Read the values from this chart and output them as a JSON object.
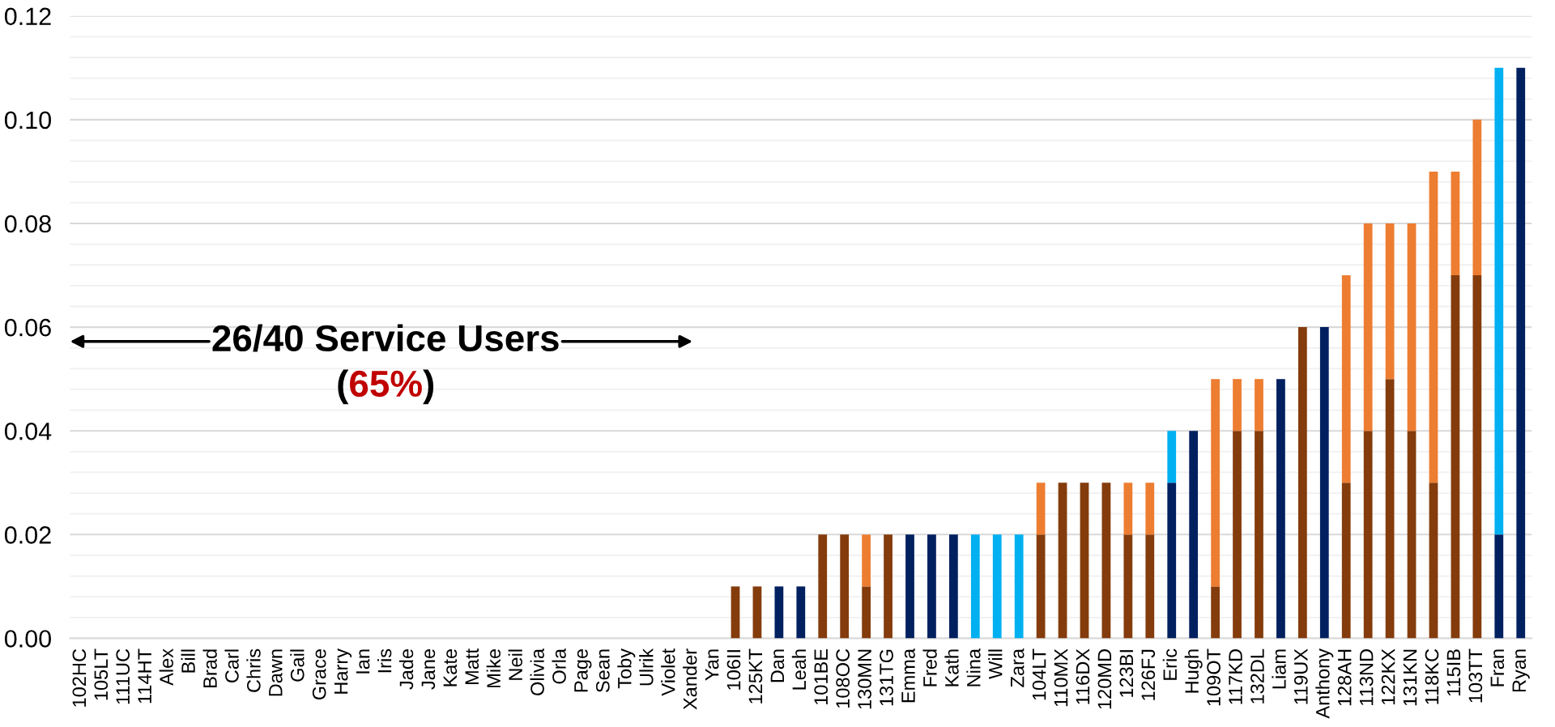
{
  "chart_data": {
    "type": "bar",
    "stacked": true,
    "categories": [
      "102HC",
      "105LT",
      "111UC",
      "114HT",
      "Alex",
      "Bill",
      "Brad",
      "Carl",
      "Chris",
      "Dawn",
      "Gail",
      "Grace",
      "Harry",
      "Ian",
      "Iris",
      "Jade",
      "Jane",
      "Kate",
      "Matt",
      "Mike",
      "Neil",
      "Olivia",
      "Orla",
      "Page",
      "Sean",
      "Toby",
      "Ulrik",
      "Violet",
      "Xander",
      "Yan",
      "106II",
      "125KT",
      "Dan",
      "Leah",
      "101BE",
      "108OC",
      "130MN",
      "131TG",
      "Emma",
      "Fred",
      "Kath",
      "Nina",
      "Will",
      "Zara",
      "104LT",
      "110MX",
      "116DX",
      "120MD",
      "123BI",
      "126FJ",
      "Eric",
      "Hugh",
      "109OT",
      "117KD",
      "132DL",
      "Liam",
      "119UX",
      "Anthony",
      "128AH",
      "113ND",
      "122KX",
      "131KN",
      "118KC",
      "115IB",
      "103TT",
      "Fran",
      "Ryan"
    ],
    "series": [
      {
        "color": "#843c0c",
        "values": [
          0,
          0,
          0,
          0,
          0,
          0,
          0,
          0,
          0,
          0,
          0,
          0,
          0,
          0,
          0,
          0,
          0,
          0,
          0,
          0,
          0,
          0,
          0,
          0,
          0,
          0,
          0,
          0,
          0,
          0,
          0.01,
          0.01,
          null,
          null,
          0.02,
          0.02,
          0.01,
          0.02,
          null,
          null,
          null,
          null,
          null,
          null,
          0.02,
          0.03,
          0.03,
          0.03,
          0.02,
          0.02,
          null,
          null,
          0.01,
          0.04,
          0.04,
          null,
          0.06,
          null,
          0.03,
          0.04,
          0.05,
          0.04,
          0.03,
          0.07,
          0.07,
          null,
          null
        ]
      },
      {
        "color": "#ed7d31",
        "values": [
          null,
          null,
          null,
          null,
          null,
          null,
          null,
          null,
          null,
          null,
          null,
          null,
          null,
          null,
          null,
          null,
          null,
          null,
          null,
          null,
          null,
          null,
          null,
          null,
          null,
          null,
          null,
          null,
          null,
          null,
          null,
          null,
          null,
          null,
          null,
          null,
          0.01,
          null,
          null,
          null,
          null,
          null,
          null,
          null,
          0.01,
          null,
          null,
          null,
          0.01,
          0.01,
          null,
          null,
          0.04,
          0.01,
          0.01,
          null,
          null,
          null,
          0.04,
          0.04,
          0.03,
          0.04,
          0.06,
          0.02,
          0.03,
          null,
          null
        ]
      },
      {
        "color": "#002060",
        "values": [
          null,
          null,
          null,
          null,
          null,
          null,
          null,
          null,
          null,
          null,
          null,
          null,
          null,
          null,
          null,
          null,
          null,
          null,
          null,
          null,
          null,
          null,
          null,
          null,
          null,
          null,
          null,
          null,
          null,
          null,
          null,
          null,
          0.01,
          0.01,
          null,
          null,
          null,
          null,
          0.02,
          0.02,
          0.02,
          null,
          null,
          null,
          null,
          null,
          null,
          null,
          null,
          null,
          0.03,
          0.04,
          null,
          null,
          null,
          0.05,
          null,
          0.06,
          null,
          null,
          null,
          null,
          null,
          null,
          null,
          0.02,
          0.11
        ]
      },
      {
        "color": "#00b0f0",
        "values": [
          null,
          null,
          null,
          null,
          null,
          null,
          null,
          null,
          null,
          null,
          null,
          null,
          null,
          null,
          null,
          null,
          null,
          null,
          null,
          null,
          null,
          null,
          null,
          null,
          null,
          null,
          null,
          null,
          null,
          null,
          null,
          null,
          null,
          null,
          null,
          null,
          null,
          null,
          null,
          null,
          null,
          0.02,
          0.02,
          0.02,
          null,
          null,
          null,
          null,
          null,
          null,
          0.01,
          null,
          null,
          null,
          null,
          null,
          null,
          null,
          null,
          null,
          null,
          null,
          null,
          null,
          null,
          0.09,
          null
        ]
      }
    ],
    "ylim": [
      0,
      0.12
    ],
    "yticks": [
      {
        "value": 0,
        "label": "0.00"
      },
      {
        "value": 0.02,
        "label": "0.02"
      },
      {
        "value": 0.04,
        "label": "0.04"
      },
      {
        "value": 0.06,
        "label": "0.06"
      },
      {
        "value": 0.08,
        "label": "0.08"
      },
      {
        "value": 0.1,
        "label": "0.10"
      },
      {
        "value": 0.12,
        "label": "0.12"
      }
    ],
    "grid": "y",
    "annotations": [
      "26/40 Service Users",
      "(",
      "65%",
      ")"
    ]
  }
}
